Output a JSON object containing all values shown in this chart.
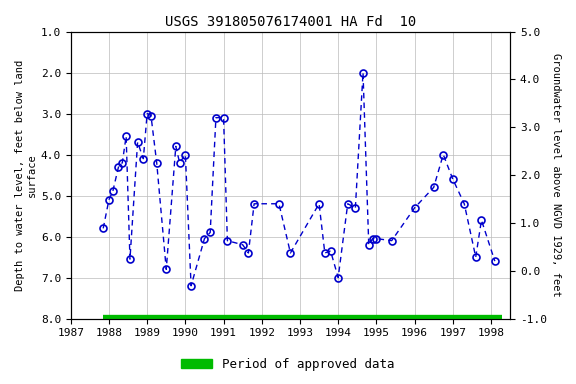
{
  "title": "USGS 391805076174001 HA Fd  10",
  "ylabel_left": "Depth to water level, feet below land\nsurface",
  "ylabel_right": "Groundwater level above NGVD 1929, feet",
  "legend_label": "Period of approved data",
  "legend_color": "#00bb00",
  "line_color": "#0000cc",
  "marker_color": "#0000cc",
  "background_color": "#ffffff",
  "grid_color": "#bbbbbb",
  "ylim_left_bottom": 8.0,
  "ylim_left_top": 1.0,
  "ylim_right_top": 5.0,
  "ylim_right_bottom": -1.0,
  "xlim": [
    1987.0,
    1998.5
  ],
  "xticks": [
    1987,
    1988,
    1989,
    1990,
    1991,
    1992,
    1993,
    1994,
    1995,
    1996,
    1997,
    1998
  ],
  "yticks_left": [
    1.0,
    2.0,
    3.0,
    4.0,
    5.0,
    6.0,
    7.0,
    8.0
  ],
  "yticks_right": [
    5.0,
    4.0,
    3.0,
    2.0,
    1.0,
    0.0,
    -1.0
  ],
  "data_x": [
    1987.85,
    1988.0,
    1988.1,
    1988.25,
    1988.35,
    1988.45,
    1988.55,
    1988.75,
    1988.9,
    1989.0,
    1989.1,
    1989.25,
    1989.5,
    1989.75,
    1989.85,
    1990.0,
    1990.15,
    1990.5,
    1990.65,
    1990.8,
    1991.0,
    1991.1,
    1991.5,
    1991.65,
    1991.8,
    1992.45,
    1992.75,
    1993.5,
    1993.65,
    1993.8,
    1994.0,
    1994.25,
    1994.45,
    1994.65,
    1994.8,
    1994.9,
    1995.0,
    1995.4,
    1996.0,
    1996.5,
    1996.75,
    1997.0,
    1997.3,
    1997.6,
    1997.75,
    1998.1
  ],
  "data_y": [
    5.8,
    5.1,
    4.9,
    4.3,
    4.2,
    3.55,
    6.55,
    3.7,
    4.1,
    3.0,
    3.05,
    4.2,
    6.8,
    3.8,
    4.2,
    4.0,
    7.2,
    6.05,
    5.9,
    3.1,
    3.1,
    6.1,
    6.2,
    6.4,
    5.2,
    5.2,
    6.4,
    5.2,
    6.4,
    6.35,
    7.0,
    5.2,
    5.3,
    2.0,
    6.2,
    6.05,
    6.05,
    6.1,
    5.3,
    4.8,
    4.0,
    4.6,
    5.2,
    6.5,
    5.6,
    6.6
  ],
  "bar_x_start": 1987.85,
  "bar_x_end": 1998.3,
  "bar_y": 8.0,
  "figsize": [
    5.76,
    3.84
  ],
  "dpi": 100
}
